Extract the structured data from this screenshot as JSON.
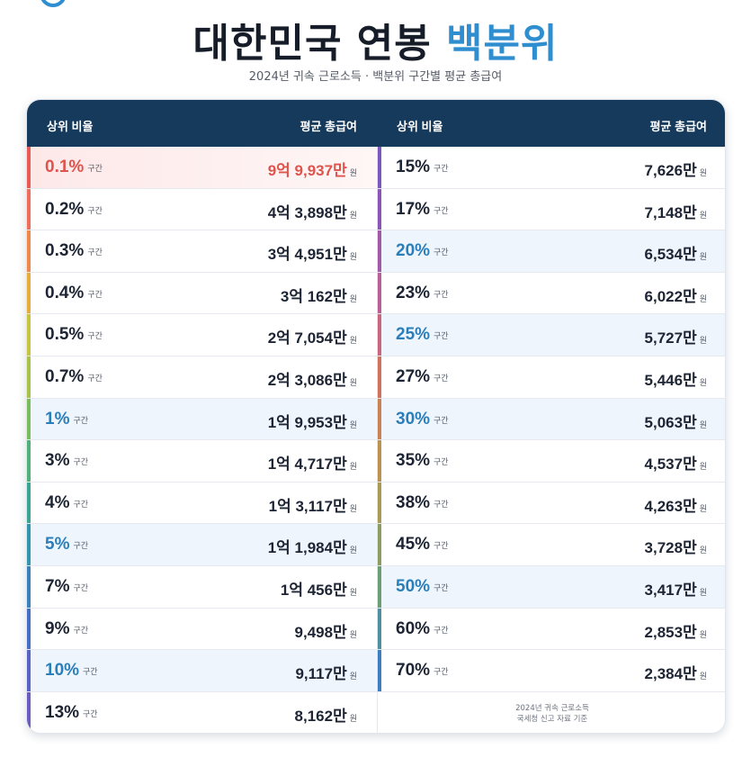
{
  "title": {
    "main": "대한민국 연봉",
    "accent": "백분위"
  },
  "subtitle": "2024년 귀속 근로소득 · 백분위 구간별 평균 총급여",
  "header": {
    "rank_label": "상위 비율",
    "amount_label": "평균 총급여"
  },
  "suffix": {
    "range": "구간",
    "won": "원"
  },
  "colors": {
    "accent": "#2f8ecf",
    "header_bg": "#163a5c",
    "top_highlight": "#e0534d"
  },
  "left_rows": [
    {
      "pct": "0.1%",
      "amount": "9억 9,937만",
      "style": "top",
      "bar": "#e85a56"
    },
    {
      "pct": "0.2%",
      "amount": "4억 3,898만",
      "style": "",
      "bar": "#ef6d5b"
    },
    {
      "pct": "0.3%",
      "amount": "3억 4,951만",
      "style": "",
      "bar": "#f0884e"
    },
    {
      "pct": "0.4%",
      "amount": "3억 162만",
      "style": "",
      "bar": "#e6ad3c"
    },
    {
      "pct": "0.5%",
      "amount": "2억 7,054만",
      "style": "",
      "bar": "#c9c440"
    },
    {
      "pct": "0.7%",
      "amount": "2억 3,086만",
      "style": "",
      "bar": "#a8c24a"
    },
    {
      "pct": "1%",
      "amount": "1억 9,953만",
      "style": "hl",
      "bar": "#7bbd5a"
    },
    {
      "pct": "3%",
      "amount": "1억 4,717만",
      "style": "",
      "bar": "#4fb279"
    },
    {
      "pct": "4%",
      "amount": "1억 3,117만",
      "style": "",
      "bar": "#3aa595"
    },
    {
      "pct": "5%",
      "amount": "1억 1,984만",
      "style": "hl",
      "bar": "#3595ad"
    },
    {
      "pct": "7%",
      "amount": "1억 456만",
      "style": "",
      "bar": "#3a82bd"
    },
    {
      "pct": "9%",
      "amount": "9,498만",
      "style": "",
      "bar": "#456fc4"
    },
    {
      "pct": "10%",
      "amount": "9,117만",
      "style": "hl",
      "bar": "#5763c6"
    },
    {
      "pct": "13%",
      "amount": "8,162만",
      "style": "",
      "bar": "#6a5cc2"
    }
  ],
  "right_rows": [
    {
      "pct": "15%",
      "amount": "7,626만",
      "style": "",
      "bar": "#7a58bd"
    },
    {
      "pct": "17%",
      "amount": "7,148만",
      "style": "",
      "bar": "#8a55b6"
    },
    {
      "pct": "20%",
      "amount": "6,534만",
      "style": "hl",
      "bar": "#a05aa8"
    },
    {
      "pct": "23%",
      "amount": "6,022만",
      "style": "",
      "bar": "#b85f96"
    },
    {
      "pct": "25%",
      "amount": "5,727만",
      "style": "hl",
      "bar": "#c96680"
    },
    {
      "pct": "27%",
      "amount": "5,446만",
      "style": "",
      "bar": "#d0725e"
    },
    {
      "pct": "30%",
      "amount": "5,063만",
      "style": "hl",
      "bar": "#c98252"
    },
    {
      "pct": "35%",
      "amount": "4,537만",
      "style": "",
      "bar": "#bd914f"
    },
    {
      "pct": "38%",
      "amount": "4,263만",
      "style": "",
      "bar": "#a99a55"
    },
    {
      "pct": "45%",
      "amount": "3,728만",
      "style": "",
      "bar": "#8b9e5f"
    },
    {
      "pct": "50%",
      "amount": "3,417만",
      "style": "hl",
      "bar": "#6d9d73"
    },
    {
      "pct": "60%",
      "amount": "2,853만",
      "style": "",
      "bar": "#4f8fa0"
    },
    {
      "pct": "70%",
      "amount": "2,384만",
      "style": "",
      "bar": "#3d7ec0"
    }
  ],
  "note": {
    "line1": "2024년 귀속 근로소득",
    "line2": "국세청 신고 자료 기준"
  }
}
